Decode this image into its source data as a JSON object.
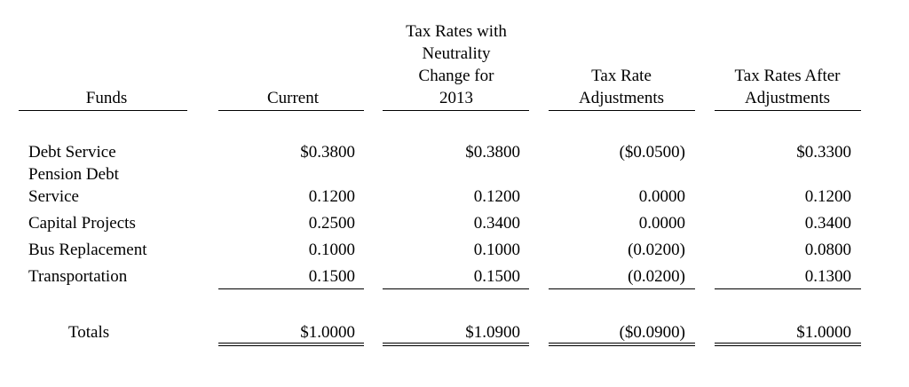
{
  "headers": {
    "funds": "Funds",
    "current": "Current",
    "neutrality": [
      "Tax Rates with",
      "Neutrality",
      "Change for",
      "2013"
    ],
    "adjustments": [
      "Tax Rate",
      "Adjustments"
    ],
    "after": [
      "Tax Rates After",
      "Adjustments"
    ]
  },
  "rows": [
    {
      "fund": [
        "Debt Service"
      ],
      "current": "$0.3800",
      "neutrality": "$0.3800",
      "adjustments": "($0.0500)",
      "after": "$0.3300"
    },
    {
      "fund": [
        "Pension Debt",
        "Service"
      ],
      "current": "0.1200",
      "neutrality": "0.1200",
      "adjustments": "0.0000",
      "after": "0.1200"
    },
    {
      "fund": [
        "Capital Projects"
      ],
      "current": "0.2500",
      "neutrality": "0.3400",
      "adjustments": "0.0000",
      "after": "0.3400"
    },
    {
      "fund": [
        "Bus Replacement"
      ],
      "current": "0.1000",
      "neutrality": "0.1000",
      "adjustments": "(0.0200)",
      "after": "0.0800"
    },
    {
      "fund": [
        "Transportation"
      ],
      "current": "0.1500",
      "neutrality": "0.1500",
      "adjustments": "(0.0200)",
      "after": "0.1300"
    }
  ],
  "totals": {
    "label": "Totals",
    "current": "$1.0000",
    "neutrality": "$1.0900",
    "adjustments": "($0.0900)",
    "after": "$1.0000"
  }
}
